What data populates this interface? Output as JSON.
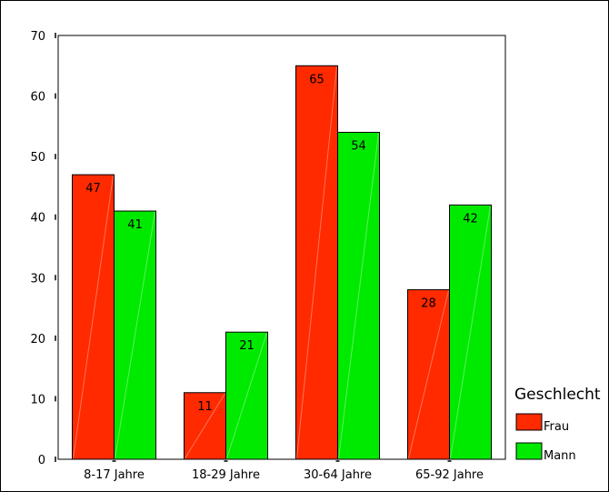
{
  "chart_data": {
    "type": "bar",
    "categories": [
      "8-17 Jahre",
      "18-29 Jahre",
      "30-64 Jahre",
      "65-92 Jahre"
    ],
    "series": [
      {
        "name": "Frau",
        "values": [
          47,
          11,
          65,
          28
        ]
      },
      {
        "name": "Mann",
        "values": [
          41,
          21,
          54,
          42
        ]
      }
    ],
    "title": "",
    "xlabel": "",
    "ylabel": "",
    "ylim": [
      0,
      70
    ],
    "yticks": [
      0,
      10,
      20,
      30,
      40,
      50,
      60,
      70
    ],
    "grid": false,
    "data_labels": true,
    "legend": {
      "title": "Geschlecht",
      "placement": "right"
    },
    "colors": {
      "Frau": "#ff2a00",
      "Mann": "#00ea00"
    }
  }
}
